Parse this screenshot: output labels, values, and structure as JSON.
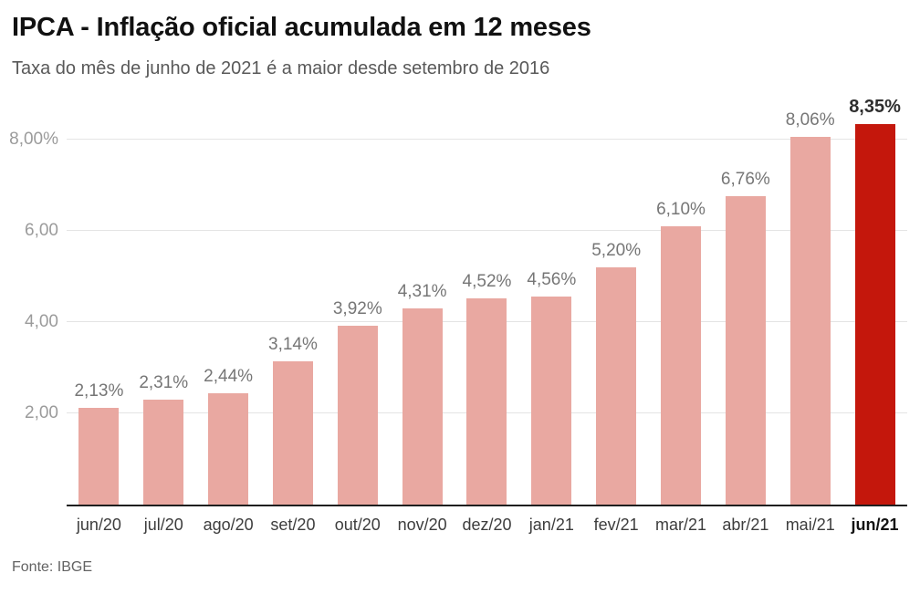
{
  "header": {
    "title": "IPCA - Inflação oficial acumulada em 12 meses",
    "subtitle": "Taxa do mês de junho de 2021 é a maior desde setembro de 2016"
  },
  "chart_data": {
    "type": "bar",
    "title": "IPCA - Inflação oficial acumulada em 12 meses",
    "subtitle": "Taxa do mês de junho de 2021 é a maior desde setembro de 2016",
    "categories": [
      "jun/20",
      "jul/20",
      "ago/20",
      "set/20",
      "out/20",
      "nov/20",
      "dez/20",
      "jan/21",
      "fev/21",
      "mar/21",
      "abr/21",
      "mai/21",
      "jun/21"
    ],
    "values": [
      2.13,
      2.31,
      2.44,
      3.14,
      3.92,
      4.31,
      4.52,
      4.56,
      5.2,
      6.1,
      6.76,
      8.06,
      8.35
    ],
    "value_labels": [
      "2,13%",
      "2,31%",
      "2,44%",
      "3,14%",
      "3,92%",
      "4,31%",
      "4,52%",
      "4,56%",
      "5,20%",
      "6,10%",
      "6,76%",
      "8,06%",
      "8,35%"
    ],
    "y_ticks": [
      {
        "value": 2,
        "label": "2,00"
      },
      {
        "value": 4,
        "label": "4,00"
      },
      {
        "value": 6,
        "label": "6,00"
      },
      {
        "value": 8,
        "label": "8,00%"
      }
    ],
    "ylim": [
      0,
      8.7
    ],
    "xlabel": "",
    "ylabel": "",
    "grid": true,
    "legend": "none",
    "highlight_index": 12,
    "bar_color": "#e9a8a1",
    "highlight_color": "#c4170c"
  },
  "footer": {
    "source": "Fonte: IBGE"
  }
}
